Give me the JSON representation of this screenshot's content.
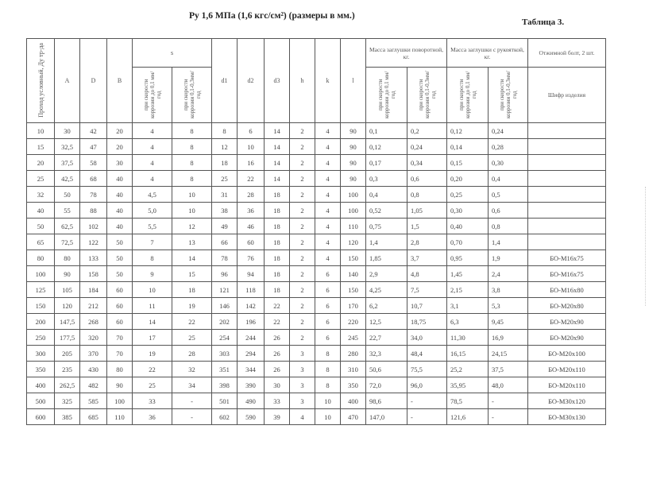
{
  "title": "Ру 1,6 МПа (1,6 кгс/см²) (размеры в мм.)",
  "table_number": "Таблица 3.",
  "headers": {
    "dy": "Проход условный, Ду тр-да",
    "A": "A",
    "D": "D",
    "B": "B",
    "s": "s",
    "s_low": "при скорости коррозии до 0,1 мм/год",
    "s_high": "при скорости коррозии 0,1-0,3мм/год",
    "d1": "d1",
    "d2": "d2",
    "d3": "d3",
    "h": "h",
    "k": "k",
    "l": "l",
    "mass_rotary": "Масса заглушки поворотной, кг.",
    "mass_handle": "Масса заглушки с рукояткой, кг.",
    "m_low": "при скорости коррозии до 0,1 мм/год",
    "m_high": "при скорости коррозии 0,1-0,3мм/год",
    "bolt": "Отжимной болт, 2 шт.",
    "bolt_code": "Шифр изделия"
  },
  "rows": [
    [
      "10",
      "30",
      "42",
      "20",
      "4",
      "8",
      "8",
      "6",
      "14",
      "2",
      "4",
      "90",
      "0,1",
      "0,2",
      "0,12",
      "0,24",
      ""
    ],
    [
      "15",
      "32,5",
      "47",
      "20",
      "4",
      "8",
      "12",
      "10",
      "14",
      "2",
      "4",
      "90",
      "0,12",
      "0,24",
      "0,14",
      "0,28",
      ""
    ],
    [
      "20",
      "37,5",
      "58",
      "30",
      "4",
      "8",
      "18",
      "16",
      "14",
      "2",
      "4",
      "90",
      "0,17",
      "0,34",
      "0,15",
      "0,30",
      ""
    ],
    [
      "25",
      "42,5",
      "68",
      "40",
      "4",
      "8",
      "25",
      "22",
      "14",
      "2",
      "4",
      "90",
      "0,3",
      "0,6",
      "0,20",
      "0,4",
      ""
    ],
    [
      "32",
      "50",
      "78",
      "40",
      "4,5",
      "10",
      "31",
      "28",
      "18",
      "2",
      "4",
      "100",
      "0,4",
      "0,8",
      "0,25",
      "0,5",
      ""
    ],
    [
      "40",
      "55",
      "88",
      "40",
      "5,0",
      "10",
      "38",
      "36",
      "18",
      "2",
      "4",
      "100",
      "0,52",
      "1,05",
      "0,30",
      "0,6",
      ""
    ],
    [
      "50",
      "62,5",
      "102",
      "40",
      "5,5",
      "12",
      "49",
      "46",
      "18",
      "2",
      "4",
      "110",
      "0,75",
      "1,5",
      "0,40",
      "0,8",
      ""
    ],
    [
      "65",
      "72,5",
      "122",
      "50",
      "7",
      "13",
      "66",
      "60",
      "18",
      "2",
      "4",
      "120",
      "1,4",
      "2,8",
      "0,70",
      "1,4",
      ""
    ],
    [
      "80",
      "80",
      "133",
      "50",
      "8",
      "14",
      "78",
      "76",
      "18",
      "2",
      "4",
      "150",
      "1,85",
      "3,7",
      "0,95",
      "1,9",
      "БО-М16х75"
    ],
    [
      "100",
      "90",
      "158",
      "50",
      "9",
      "15",
      "96",
      "94",
      "18",
      "2",
      "6",
      "140",
      "2,9",
      "4,8",
      "1,45",
      "2,4",
      "БО-М16х75"
    ],
    [
      "125",
      "105",
      "184",
      "60",
      "10",
      "18",
      "121",
      "118",
      "18",
      "2",
      "6",
      "150",
      "4,25",
      "7,5",
      "2,15",
      "3,8",
      "БО-М16х80"
    ],
    [
      "150",
      "120",
      "212",
      "60",
      "11",
      "19",
      "146",
      "142",
      "22",
      "2",
      "6",
      "170",
      "6,2",
      "10,7",
      "3,1",
      "5,3",
      "БО-М20х80"
    ],
    [
      "200",
      "147,5",
      "268",
      "60",
      "14",
      "22",
      "202",
      "196",
      "22",
      "2",
      "6",
      "220",
      "12,5",
      "18,75",
      "6,3",
      "9,45",
      "БО-М20х90"
    ],
    [
      "250",
      "177,5",
      "320",
      "70",
      "17",
      "25",
      "254",
      "244",
      "26",
      "2",
      "6",
      "245",
      "22,7",
      "34,0",
      "11,30",
      "16,9",
      "БО-М20х90"
    ],
    [
      "300",
      "205",
      "370",
      "70",
      "19",
      "28",
      "303",
      "294",
      "26",
      "3",
      "8",
      "280",
      "32,3",
      "48,4",
      "16,15",
      "24,15",
      "БО-М20х100"
    ],
    [
      "350",
      "235",
      "430",
      "80",
      "22",
      "32",
      "351",
      "344",
      "26",
      "3",
      "8",
      "310",
      "50,6",
      "75,5",
      "25,2",
      "37,5",
      "БО-М20х110"
    ],
    [
      "400",
      "262,5",
      "482",
      "90",
      "25",
      "34",
      "398",
      "390",
      "30",
      "3",
      "8",
      "350",
      "72,0",
      "96,0",
      "35,95",
      "48,0",
      "БО-М20х110"
    ],
    [
      "500",
      "325",
      "585",
      "100",
      "33",
      "-",
      "501",
      "490",
      "33",
      "3",
      "10",
      "400",
      "98,6",
      "-",
      "78,5",
      "-",
      "БО-М30х120"
    ],
    [
      "600",
      "385",
      "685",
      "110",
      "36",
      "-",
      "602",
      "590",
      "39",
      "4",
      "10",
      "470",
      "147,0",
      "-",
      "121,6",
      "-",
      "БО-М30х130"
    ]
  ]
}
